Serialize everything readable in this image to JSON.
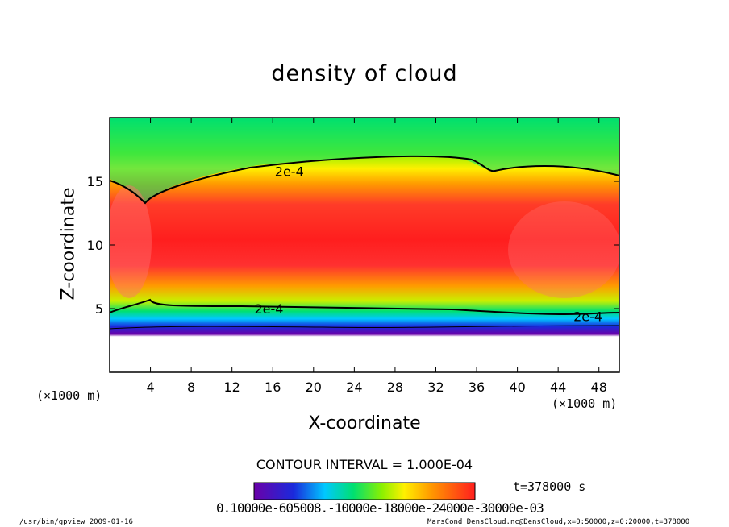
{
  "chart_data": {
    "type": "heatmap",
    "title": "density of cloud",
    "xlabel": "X-coordinate",
    "ylabel": "Z-coordinate",
    "x_unit_left": "(×1000 m)",
    "x_unit_right": "(×1000 m)",
    "xlim": [
      0,
      50
    ],
    "ylim": [
      0,
      20
    ],
    "x_ticks": [
      4,
      8,
      12,
      16,
      20,
      24,
      28,
      32,
      36,
      40,
      44,
      48
    ],
    "y_ticks": [
      5,
      10,
      15
    ],
    "contour_labels": [
      {
        "text": "2e-4",
        "x": 16.2,
        "z": 15.8
      },
      {
        "text": "2e-4",
        "x": 14.2,
        "z": 5.0
      },
      {
        "text": "2e-4",
        "x": 45.5,
        "z": 4.4
      }
    ],
    "contour_interval": "CONTOUR INTERVAL = 1.000E-04",
    "time": "t=378000 s",
    "colorbar_labels": "0.10000e-605008.-10000e-18000e-24000e-30000e-03",
    "colors": [
      "#6a00a8",
      "#1a2adc",
      "#00c8ff",
      "#00e070",
      "#8cf000",
      "#fff000",
      "#ff9a00",
      "#ff3c28",
      "#ff1e1e"
    ]
  },
  "footer": {
    "left": "/usr/bin/gpview  2009-01-16",
    "right": "MarsCond_DensCloud.nc@DensCloud,x=0:50000,z=0:20000,t=378000"
  }
}
